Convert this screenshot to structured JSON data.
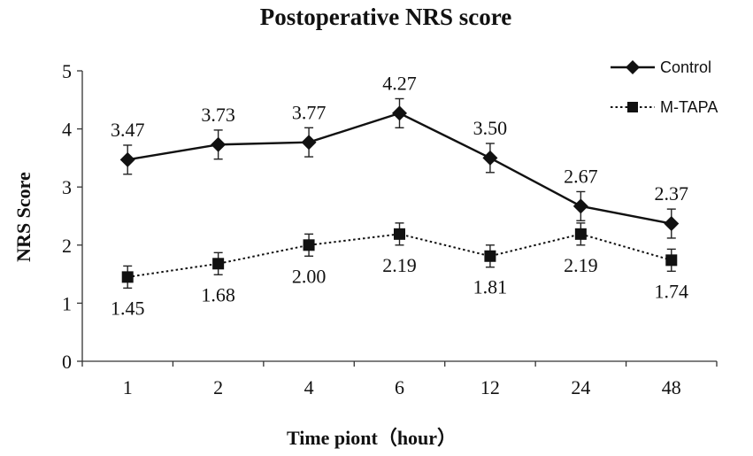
{
  "chart_data": {
    "type": "line",
    "title": "Postoperative NRS score",
    "xlabel": "Time piont（hour）",
    "ylabel": "NRS Score",
    "categories": [
      "1",
      "2",
      "4",
      "6",
      "12",
      "24",
      "48"
    ],
    "ylim": [
      0,
      5
    ],
    "yticks": [
      0,
      1,
      2,
      3,
      4,
      5
    ],
    "legend_position": "top-right",
    "grid": false,
    "series": [
      {
        "name": "Control",
        "values": [
          3.47,
          3.73,
          3.77,
          4.27,
          3.5,
          2.67,
          2.37
        ],
        "labels": [
          "3.47",
          "3.73",
          "3.77",
          "4.27",
          "3.50",
          "2.67",
          "2.37"
        ],
        "error": [
          0.25,
          0.25,
          0.25,
          0.25,
          0.25,
          0.25,
          0.25
        ],
        "marker": "diamond",
        "line_style": "solid",
        "label_position": "above",
        "color": "#111111"
      },
      {
        "name": "M-TAPA",
        "values": [
          1.45,
          1.68,
          2.0,
          2.19,
          1.81,
          2.19,
          1.74
        ],
        "labels": [
          "1.45",
          "1.68",
          "2.00",
          "2.19",
          "1.81",
          "2.19",
          "1.74"
        ],
        "error": [
          0.19,
          0.19,
          0.19,
          0.19,
          0.19,
          0.19,
          0.19
        ],
        "marker": "square",
        "line_style": "dotted",
        "label_position": "below",
        "color": "#111111"
      }
    ]
  }
}
